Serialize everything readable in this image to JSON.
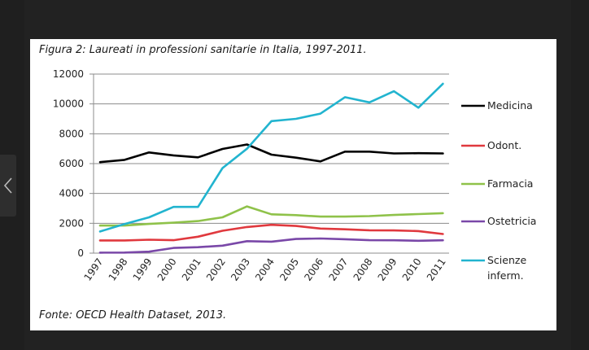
{
  "chart_data": {
    "type": "line",
    "title": "Figura 2: Laureati in professioni sanitarie in Italia, 1997-2011.",
    "source": "Fonte: OECD Health Dataset, 2013.",
    "xlabel": "",
    "ylabel": "",
    "ylim": [
      0,
      12000
    ],
    "y_ticks": [
      "0",
      "2000",
      "4000",
      "6000",
      "8000",
      "10000",
      "12000"
    ],
    "x": [
      "1997",
      "1998",
      "1999",
      "2000",
      "2001",
      "2002",
      "2003",
      "2004",
      "2005",
      "2006",
      "2007",
      "2008",
      "2009",
      "2010",
      "2011"
    ],
    "grid": "horizontal",
    "legend_position": "right",
    "series": [
      {
        "name": "Medicina",
        "color": "#000000",
        "values": [
          6100,
          6250,
          6750,
          6550,
          6420,
          6980,
          7280,
          6600,
          6400,
          6150,
          6800,
          6800,
          6680,
          6700,
          6680
        ]
      },
      {
        "name": "Odont.",
        "color": "#e0393e",
        "values": [
          850,
          850,
          900,
          870,
          1100,
          1500,
          1750,
          1900,
          1820,
          1650,
          1600,
          1530,
          1520,
          1480,
          1280
        ]
      },
      {
        "name": "Farmacia",
        "color": "#8fc24a",
        "values": [
          1850,
          1850,
          1960,
          2040,
          2150,
          2400,
          3130,
          2600,
          2550,
          2450,
          2450,
          2480,
          2560,
          2620,
          2680
        ]
      },
      {
        "name": "Ostetricia",
        "color": "#7a48a8",
        "values": [
          30,
          40,
          100,
          350,
          400,
          500,
          800,
          770,
          950,
          980,
          930,
          870,
          860,
          830,
          860
        ]
      },
      {
        "name": "Scienze\ninferm.",
        "color": "#22b4cf",
        "values": [
          1450,
          1950,
          2400,
          3100,
          3100,
          5700,
          7000,
          8850,
          9000,
          9350,
          10450,
          10100,
          10850,
          9750,
          11350
        ]
      }
    ]
  },
  "nav": {
    "prev_icon": "chevron-left-icon"
  }
}
